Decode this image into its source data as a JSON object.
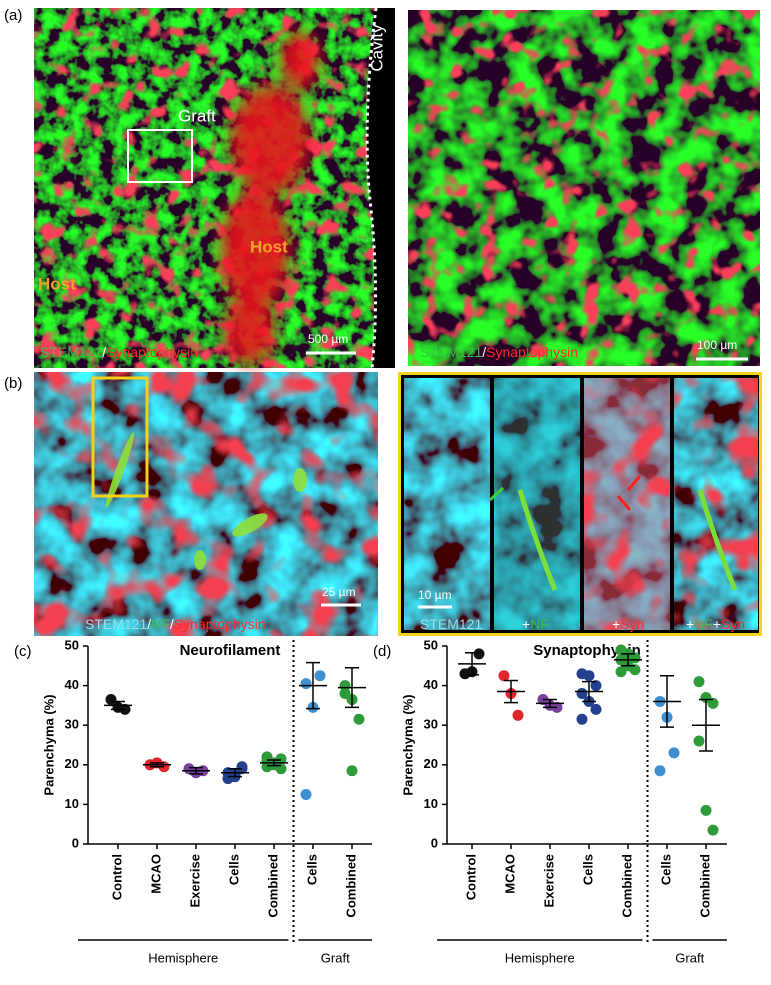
{
  "figure": {
    "panel_a": {
      "label": "(a)",
      "overview": {
        "annotations": [
          "Graft",
          "Cavity",
          "Host",
          "Host"
        ],
        "stain": [
          "STEM121",
          "/",
          "Synaptophysin"
        ],
        "scale_bar": "500 µm"
      },
      "zoom": {
        "stain": [
          "STEM121",
          "/",
          "Synaptophysin"
        ],
        "scale_bar": "100 µm"
      }
    },
    "panel_b": {
      "label": "(b)",
      "overview": {
        "stain": [
          "STEM121",
          "/",
          "NF",
          "/",
          "Synaptophysin"
        ],
        "scale_bar": "25 µm"
      },
      "zoom": {
        "scale_bar": "10 µm",
        "channels": [
          [
            "STEM121"
          ],
          [
            "+",
            "NF"
          ],
          [
            "+",
            "Syn"
          ],
          [
            "+",
            "NF",
            "+",
            "Syn"
          ]
        ]
      }
    }
  },
  "chart_data": [
    {
      "type": "dot",
      "panel_label": "(c)",
      "title": "Neurofilament",
      "y_label": "Parenchyma (%)",
      "ylim": [
        0,
        50
      ],
      "yticks": [
        0,
        10,
        20,
        30,
        40,
        50
      ],
      "groups": [
        {
          "name": "Hemisphere",
          "categories": [
            {
              "name": "Control",
              "color": "#111111",
              "points": [
                36.5,
                34.5,
                34
              ],
              "mean": 35,
              "error": 1
            },
            {
              "name": "MCAO",
              "color": "#e0262a",
              "points": [
                20,
                20.5,
                19.5
              ],
              "mean": 20,
              "error": 0.5
            },
            {
              "name": "Exercise",
              "color": "#7b3fa0",
              "points": [
                19,
                18,
                18.5
              ],
              "mean": 18.5,
              "error": 0.8
            },
            {
              "name": "Cells",
              "color": "#23418f",
              "points": [
                18,
                17.5,
                19,
                18,
                17,
                19.5,
                16.5
              ],
              "mean": 18,
              "error": 1
            },
            {
              "name": "Combined",
              "color": "#2e9a3a",
              "points": [
                21,
                20,
                19,
                22,
                20.5,
                21.5,
                19.5
              ],
              "mean": 20.5,
              "error": 0.7
            }
          ]
        },
        {
          "name": "Graft",
          "categories": [
            {
              "name": "Cells",
              "color": "#3f8fcf",
              "points": [
                40.5,
                34.5,
                42.5,
                12.5
              ],
              "mean": 40,
              "error": 5.8
            },
            {
              "name": "Combined",
              "color": "#2e9a3a",
              "points": [
                40,
                36.5,
                31.5,
                38,
                18.5
              ],
              "mean": 39.5,
              "error": 5
            }
          ]
        }
      ]
    },
    {
      "type": "dot",
      "panel_label": "(d)",
      "title": "Synaptophysin",
      "y_label": "Parenchyma (%)",
      "ylim": [
        0,
        50
      ],
      "yticks": [
        0,
        10,
        20,
        30,
        40,
        50
      ],
      "groups": [
        {
          "name": "Hemisphere",
          "categories": [
            {
              "name": "Control",
              "color": "#111111",
              "points": [
                43,
                43.5,
                48
              ],
              "mean": 45.5,
              "error": 2.8
            },
            {
              "name": "MCAO",
              "color": "#e0262a",
              "points": [
                42.5,
                38,
                32.5
              ],
              "mean": 38.5,
              "error": 2.8
            },
            {
              "name": "Exercise",
              "color": "#7b3fa0",
              "points": [
                36.5,
                35,
                34.5
              ],
              "mean": 35.5,
              "error": 1
            },
            {
              "name": "Cells",
              "color": "#23418f",
              "points": [
                43,
                42.5,
                40,
                38,
                36,
                34,
                31.5
              ],
              "mean": 38.5,
              "error": 2.5
            },
            {
              "name": "Combined",
              "color": "#2e9a3a",
              "points": [
                49,
                48,
                47,
                46.5,
                45,
                44,
                43.5
              ],
              "mean": 46.5,
              "error": 1.5
            }
          ]
        },
        {
          "name": "Graft",
          "categories": [
            {
              "name": "Cells",
              "color": "#3f8fcf",
              "points": [
                36,
                32,
                23,
                18.5
              ],
              "mean": 36,
              "error": 6.5
            },
            {
              "name": "Combined",
              "color": "#2e9a3a",
              "points": [
                41,
                37,
                35.5,
                26,
                8.5,
                3.5
              ],
              "mean": 30,
              "error": 6.5
            }
          ]
        }
      ]
    }
  ]
}
